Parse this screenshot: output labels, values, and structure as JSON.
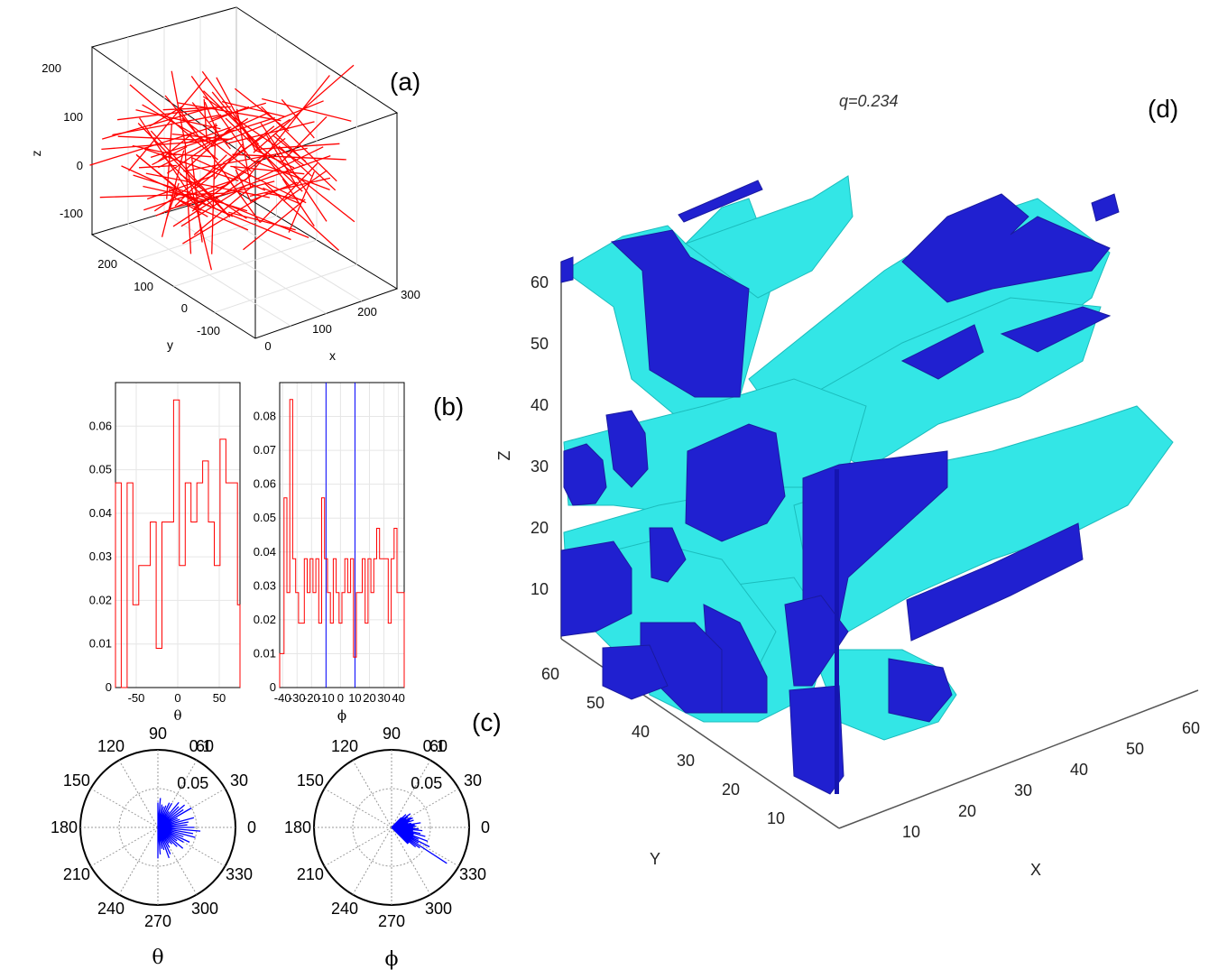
{
  "panel_labels": {
    "a": "(a)",
    "b": "(b)",
    "c": "(c)",
    "d": "(d)"
  },
  "chart_data": [
    {
      "id": "a",
      "type": "line3d",
      "xlabel": "x",
      "ylabel": "y",
      "zlabel": "z",
      "x_ticks": [
        "0",
        "100",
        "200",
        "300"
      ],
      "y_ticks": [
        "-100",
        "0",
        "100",
        "200"
      ],
      "z_ticks": [
        "-100",
        "0",
        "100",
        "200"
      ],
      "series_color": "#ff0000",
      "segment_count": 120
    },
    {
      "id": "b1",
      "type": "histogram",
      "xlabel": "θ",
      "x_ticks": [
        "-50",
        "0",
        "50"
      ],
      "y_ticks": [
        "0",
        "0.01",
        "0.02",
        "0.03",
        "0.04",
        "0.05",
        "0.06"
      ],
      "xlim": [
        -75,
        75
      ],
      "ylim": [
        0,
        0.07
      ],
      "bin_edges": [
        -75,
        -68,
        -61,
        -54,
        -47,
        -40,
        -33,
        -26,
        -19,
        -12,
        -5,
        2,
        9,
        16,
        23,
        30,
        37,
        44,
        51,
        58,
        65,
        72,
        75
      ],
      "values": [
        0.047,
        0,
        0.047,
        0.019,
        0.028,
        0.028,
        0.038,
        0.009,
        0.038,
        0.038,
        0.066,
        0.028,
        0.047,
        0.038,
        0.047,
        0.052,
        0.038,
        0.028,
        0.057,
        0.047,
        0.047,
        0.019
      ],
      "grid": true,
      "color": "#ff0000"
    },
    {
      "id": "b2",
      "type": "histogram",
      "xlabel": "ϕ",
      "x_ticks": [
        "-40",
        "-30",
        "-20",
        "-10",
        "0",
        "10",
        "20",
        "30",
        "40"
      ],
      "y_ticks": [
        "0",
        "0.01",
        "0.02",
        "0.03",
        "0.04",
        "0.05",
        "0.06",
        "0.07",
        "0.08"
      ],
      "xlim": [
        -42,
        44
      ],
      "ylim": [
        0,
        0.09
      ],
      "bin_edges": [
        -42,
        -39,
        -37,
        -35,
        -33,
        -31,
        -29,
        -27,
        -25,
        -23,
        -21,
        -19,
        -17,
        -15,
        -13,
        -11,
        -9,
        -7,
        -5,
        -3,
        -1,
        1,
        3,
        5,
        7,
        9,
        11,
        13,
        15,
        17,
        19,
        21,
        23,
        25,
        27,
        29,
        31,
        33,
        35,
        37,
        39,
        41,
        44
      ],
      "values": [
        0.01,
        0.056,
        0.028,
        0.085,
        0.038,
        0.028,
        0.019,
        0.019,
        0.038,
        0.028,
        0.038,
        0.028,
        0.038,
        0.019,
        0.056,
        0.038,
        0.028,
        0.019,
        0.038,
        0.028,
        0.019,
        0.028,
        0.038,
        0.028,
        0.038,
        0.009,
        0.028,
        0.028,
        0.038,
        0.019,
        0.038,
        0.028,
        0.038,
        0.047,
        0.038,
        0.038,
        0.038,
        0.019,
        0.038,
        0.047,
        0.028,
        0.028
      ],
      "vlines": [
        -10,
        10
      ],
      "vline_color": "#0000ff",
      "grid": true,
      "color": "#ff0000"
    },
    {
      "id": "c1",
      "type": "polar",
      "label": "θ",
      "angle_ticks": [
        "0",
        "30",
        "60",
        "90",
        "120",
        "150",
        "180",
        "210",
        "240",
        "270",
        "300",
        "330"
      ],
      "radial_ticks": [
        "0.05",
        "0.1"
      ],
      "rmax": 0.1,
      "color": "#0000ff",
      "angles": [
        0,
        5,
        10,
        15,
        20,
        25,
        30,
        35,
        40,
        45,
        50,
        55,
        60,
        65,
        70,
        75,
        80,
        85,
        90,
        -5,
        -10,
        -15,
        -20,
        -25,
        -30,
        -35,
        -40,
        -45,
        -50,
        -55,
        -60,
        -65,
        -70,
        -75,
        -80,
        -85,
        -90
      ],
      "radii": [
        0.047,
        0.038,
        0.04,
        0.048,
        0.03,
        0.028,
        0.05,
        0.04,
        0.045,
        0.038,
        0.042,
        0.025,
        0.036,
        0.035,
        0.03,
        0.028,
        0.03,
        0.038,
        0.032,
        0.055,
        0.046,
        0.05,
        0.035,
        0.045,
        0.038,
        0.03,
        0.042,
        0.035,
        0.028,
        0.025,
        0.03,
        0.038,
        0.042,
        0.03,
        0.028,
        0.035,
        0.04
      ]
    },
    {
      "id": "c2",
      "type": "polar",
      "label": "ϕ",
      "angle_ticks": [
        "0",
        "30",
        "60",
        "90",
        "120",
        "150",
        "180",
        "210",
        "240",
        "270",
        "300",
        "330"
      ],
      "radial_ticks": [
        "0.05",
        "0.1"
      ],
      "rmax": 0.1,
      "color": "#0000ff",
      "angles": [
        0,
        3,
        6,
        9,
        12,
        15,
        18,
        21,
        24,
        27,
        30,
        33,
        36,
        39,
        42,
        45,
        -3,
        -6,
        -9,
        -12,
        -15,
        -18,
        -21,
        -24,
        -27,
        -30,
        -33,
        -36,
        -39,
        -42,
        -45
      ],
      "radii": [
        0.028,
        0.032,
        0.03,
        0.038,
        0.026,
        0.022,
        0.03,
        0.025,
        0.03,
        0.028,
        0.022,
        0.025,
        0.03,
        0.02,
        0.025,
        0.018,
        0.035,
        0.04,
        0.028,
        0.038,
        0.045,
        0.03,
        0.05,
        0.038,
        0.055,
        0.04,
        0.085,
        0.045,
        0.04,
        0.03,
        0.03
      ]
    },
    {
      "id": "d",
      "type": "volume3d",
      "title": "q=0.234",
      "xlabel": "X",
      "ylabel": "Y",
      "zlabel": "Z",
      "x_ticks": [
        "10",
        "20",
        "30",
        "40",
        "50",
        "60"
      ],
      "y_ticks": [
        "10",
        "20",
        "30",
        "40",
        "50",
        "60"
      ],
      "z_ticks": [
        "10",
        "20",
        "30",
        "40",
        "50",
        "60"
      ],
      "surface_color": "#33e6e6",
      "cap_color": "#2020d0"
    }
  ]
}
